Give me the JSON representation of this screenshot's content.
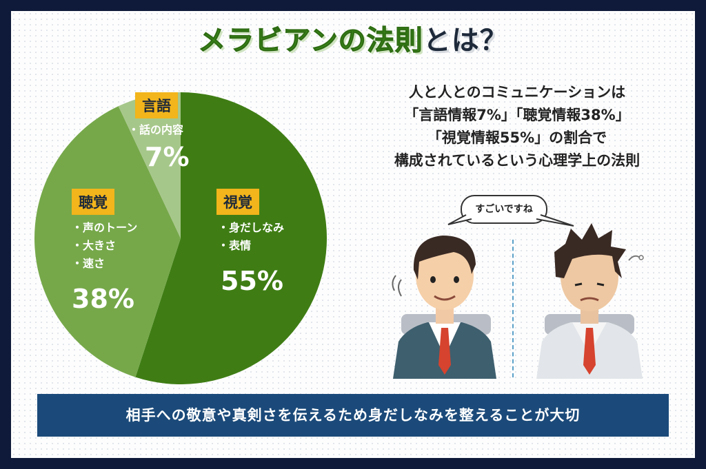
{
  "title": {
    "part1": "メラビアンの法則",
    "part2": "とは？"
  },
  "description": {
    "line1": "人と人とのコミュニケーションは",
    "line2": "「言語情報7%」「聴覚情報38%」",
    "line3": "「視覚情報55%」の割合で",
    "line4": "構成されているという心理学上の法則"
  },
  "speech_bubble": "すごいですね",
  "bottom_banner": "相手への敬意や真剣さを伝えるため身だしなみを整えることが大切",
  "chart_data": {
    "type": "pie",
    "slices": [
      {
        "name": "視覚",
        "value": 55,
        "label": "55%",
        "items": [
          "身だしなみ",
          "表情"
        ],
        "color": "#3f7d14"
      },
      {
        "name": "聴覚",
        "value": 38,
        "label": "38%",
        "items": [
          "声のトーン",
          "大きさ",
          "速さ"
        ],
        "color": "#76a84a"
      },
      {
        "name": "言語",
        "value": 7,
        "label": "7%",
        "items": [
          "話の内容"
        ],
        "color": "#a6c78a"
      }
    ]
  },
  "colors": {
    "accent": "#f2b51b",
    "navy": "#1b4a7a",
    "background": "#0f1a3a"
  }
}
